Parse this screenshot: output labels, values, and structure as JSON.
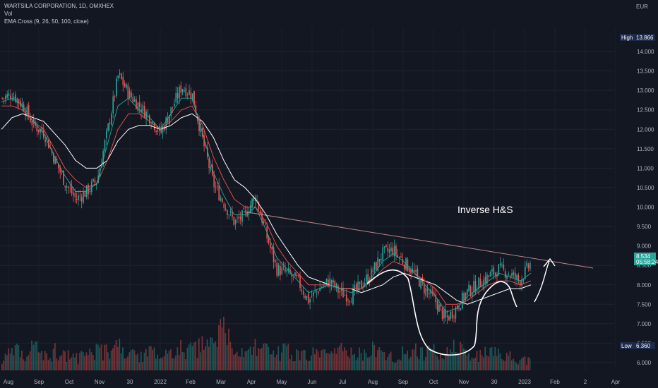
{
  "header": {
    "title": "WARTSILA CORPORATION, 1D, OMXHEX",
    "indicator_vol": "Vol",
    "indicator_ema": "EMA Cross (9, 26, 50, 100, close)",
    "currency": "EUR"
  },
  "annotation": {
    "text": "Inverse H&S"
  },
  "price_tags": {
    "high_label": "High",
    "high_value": "13.866",
    "low_label": "Low",
    "low_value": "6.360",
    "last_value": "8.534",
    "countdown": "05:58:24"
  },
  "colors": {
    "up": "#26a69a",
    "down": "#ef5350",
    "background": "#131722",
    "ema_fast": "#26a69a",
    "ema_slow": "#ef5350",
    "ema_long": "#ffffff",
    "trendline": "#e8a0a0"
  },
  "chart_data": {
    "type": "candlestick",
    "ylim": [
      5.8,
      14.6
    ],
    "y_ticks": [
      "14.000",
      "13.500",
      "13.000",
      "12.500",
      "12.000",
      "11.500",
      "11.000",
      "10.500",
      "10.000",
      "9.500",
      "9.000",
      "8.500",
      "8.000",
      "7.500",
      "7.000",
      "6.500",
      "6.000"
    ],
    "x_ticks": [
      "Aug",
      "Sep",
      "Oct",
      "Nov",
      "30",
      "2022",
      "Feb",
      "Mar",
      "Apr",
      "May",
      "Jun",
      "Jul",
      "Aug",
      "Sep",
      "Oct",
      "Nov",
      "30",
      "2023",
      "Feb",
      "2",
      "Apr"
    ],
    "high": 13.866,
    "low": 6.36,
    "last": 8.534,
    "close_path": [
      12.8,
      12.9,
      12.6,
      12.1,
      11.9,
      11.2,
      10.6,
      10.2,
      10.4,
      10.7,
      12.0,
      13.4,
      12.9,
      12.6,
      12.3,
      11.9,
      12.5,
      13.1,
      12.9,
      11.7,
      10.6,
      10.1,
      9.6,
      9.8,
      10.3,
      9.3,
      8.4,
      8.3,
      8.1,
      7.6,
      7.9,
      8.1,
      7.8,
      7.7,
      8.0,
      8.3,
      8.8,
      8.9,
      8.6,
      8.3,
      7.9,
      7.6,
      7.1,
      7.4,
      7.8,
      8.0,
      8.2,
      8.4,
      8.3,
      8.1,
      8.534
    ],
    "ema_fast": [
      12.7,
      12.8,
      12.6,
      12.2,
      11.9,
      11.3,
      10.8,
      10.4,
      10.4,
      10.6,
      11.6,
      12.6,
      12.8,
      12.5,
      12.3,
      12.0,
      12.4,
      12.8,
      12.8,
      11.9,
      10.9,
      10.3,
      9.8,
      9.8,
      10.0,
      9.4,
      8.7,
      8.4,
      8.1,
      7.8,
      7.9,
      8.0,
      7.9,
      7.8,
      7.9,
      8.2,
      8.6,
      8.8,
      8.6,
      8.3,
      8.0,
      7.7,
      7.3,
      7.4,
      7.7,
      7.9,
      8.1,
      8.3,
      8.2,
      8.1,
      8.3
    ],
    "ema_slow": [
      12.6,
      12.6,
      12.5,
      12.2,
      12.0,
      11.5,
      11.0,
      10.7,
      10.5,
      10.6,
      11.2,
      12.0,
      12.4,
      12.4,
      12.2,
      12.0,
      12.2,
      12.5,
      12.6,
      12.1,
      11.3,
      10.7,
      10.2,
      10.0,
      10.0,
      9.6,
      9.0,
      8.6,
      8.3,
      8.0,
      8.0,
      8.0,
      7.9,
      7.9,
      7.9,
      8.1,
      8.4,
      8.6,
      8.5,
      8.3,
      8.1,
      7.9,
      7.5,
      7.5,
      7.6,
      7.8,
      8.0,
      8.1,
      8.1,
      8.0,
      8.1
    ],
    "ema_long": [
      12.0,
      12.3,
      12.4,
      12.3,
      12.2,
      11.9,
      11.6,
      11.2,
      11.0,
      11.0,
      11.2,
      11.7,
      12.0,
      12.1,
      12.1,
      12.0,
      12.1,
      12.3,
      12.4,
      12.2,
      11.8,
      11.2,
      10.7,
      10.5,
      10.2,
      9.8,
      9.3,
      8.9,
      8.5,
      8.2,
      8.1,
      8.0,
      7.9,
      7.9,
      7.8,
      7.9,
      8.0,
      8.2,
      8.3,
      8.2,
      8.1,
      8.0,
      7.8,
      7.6,
      7.5,
      7.6,
      7.7,
      7.8,
      7.9,
      7.9,
      8.0
    ],
    "volume_rel": [
      0.3,
      0.5,
      0.4,
      0.6,
      0.35,
      0.5,
      0.45,
      0.3,
      0.4,
      0.55,
      0.45,
      0.6,
      0.4,
      0.35,
      0.5,
      0.3,
      0.45,
      0.55,
      0.5,
      0.6,
      0.7,
      1.0,
      0.5,
      0.45,
      0.6,
      0.5,
      0.4,
      0.55,
      0.35,
      0.45,
      0.4,
      0.35,
      0.5,
      0.4,
      0.45,
      0.55,
      0.4,
      0.35,
      0.45,
      0.5,
      0.4,
      0.55,
      0.45,
      0.6,
      0.4,
      0.35,
      0.45,
      0.4,
      0.35,
      0.3,
      0.25
    ]
  }
}
